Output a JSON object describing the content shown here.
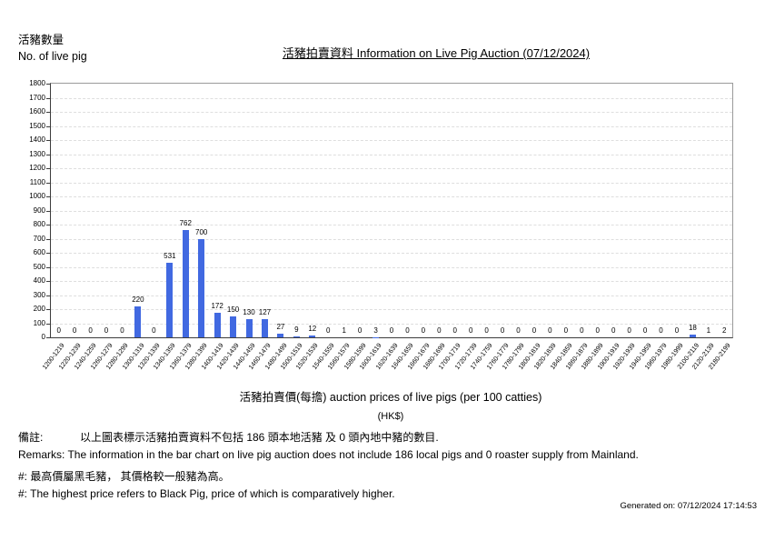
{
  "chart_data": {
    "type": "bar",
    "title": "活豬拍賣資料 Information on Live Pig Auction (07/12/2024)",
    "ylabel_zh": "活豬數量",
    "ylabel_en": "No. of live pig",
    "xlabel": "活豬拍賣價(每擔) auction prices of live pigs (per 100 catties)",
    "xlabel_unit": "(HK$)",
    "ylim": [
      0,
      1800
    ],
    "y_tick_step": 100,
    "grid": "horizontal-dashed",
    "legend": false,
    "bar_color": "#4169E1",
    "categories": [
      "1200-1219",
      "1220-1239",
      "1240-1259",
      "1260-1279",
      "1280-1299",
      "1300-1319",
      "1320-1339",
      "1340-1359",
      "1360-1379",
      "1380-1399",
      "1400-1419",
      "1420-1439",
      "1440-1459",
      "1460-1479",
      "1480-1499",
      "1500-1519",
      "1520-1539",
      "1540-1559",
      "1560-1579",
      "1580-1599",
      "1600-1619",
      "1620-1639",
      "1640-1659",
      "1660-1679",
      "1680-1699",
      "1700-1719",
      "1720-1739",
      "1740-1759",
      "1760-1779",
      "1780-1799",
      "1800-1819",
      "1820-1839",
      "1840-1859",
      "1860-1879",
      "1880-1899",
      "1900-1919",
      "1920-1939",
      "1940-1959",
      "1960-1979",
      "1980-1999",
      "2100-2119",
      "2120-2139",
      "2180-2199"
    ],
    "values": [
      0,
      0,
      0,
      0,
      0,
      220,
      0,
      531,
      762,
      700,
      172,
      150,
      130,
      127,
      27,
      9,
      12,
      0,
      1,
      0,
      3,
      0,
      0,
      0,
      0,
      0,
      0,
      0,
      0,
      0,
      0,
      0,
      0,
      0,
      0,
      0,
      0,
      0,
      0,
      0,
      18,
      1,
      2
    ]
  },
  "remarks": {
    "label_zh": "備註:",
    "text_zh": "以上圖表標示活豬拍賣資料不包括 186 頭本地活豬 及 0 頭內地中豬的數目.",
    "label_en": "Remarks:",
    "text_en": "The information in the bar chart on live pig auction does not include 186 local pigs and 0 roaster supply from Mainland.",
    "note_zh": "#: 最高價屬黑毛豬， 其價格較一般豬為高。",
    "note_en": "#: The highest price refers to Black Pig, price of which is comparatively higher."
  },
  "footer": {
    "generated_on": "Generated on: 07/12/2024 17:14:53"
  }
}
